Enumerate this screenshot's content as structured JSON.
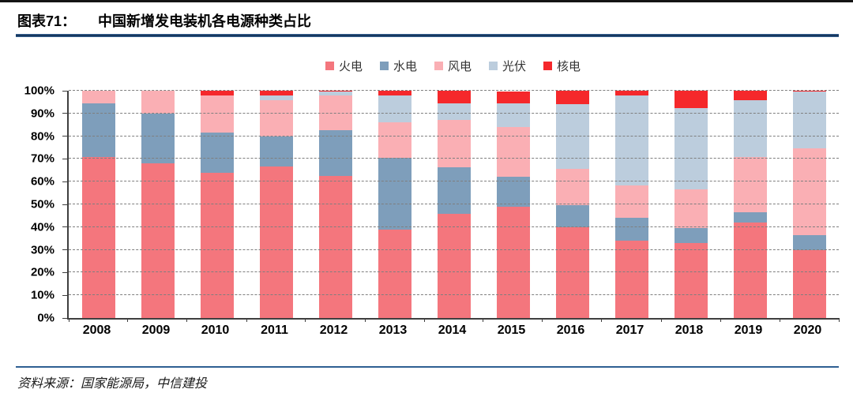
{
  "header": {
    "label": "图表71：",
    "title": "中国新增发电装机各电源种类占比"
  },
  "source": {
    "text": "资料来源：国家能源局，中信建投"
  },
  "colors": {
    "thermal": "#F4767D",
    "hydro": "#7E9EBB",
    "wind": "#FAAFB4",
    "solar": "#BCCDDD",
    "nuclear": "#F5282B",
    "title_rule": "#17375E",
    "source_rule": "#2E5F92",
    "axis": "#3F3F3F",
    "gridline": "#7F7F7F"
  },
  "chart_data": {
    "type": "bar",
    "stacked": true,
    "percent": true,
    "title": "中国新增发电装机各电源种类占比",
    "xlabel": "",
    "ylabel": "",
    "ylim": [
      0,
      100
    ],
    "yticks": [
      "0%",
      "10%",
      "20%",
      "30%",
      "40%",
      "50%",
      "60%",
      "70%",
      "80%",
      "90%",
      "100%"
    ],
    "grid": "horizontal-dashed",
    "legend_position": "top-center",
    "categories": [
      "2008",
      "2009",
      "2010",
      "2011",
      "2012",
      "2013",
      "2014",
      "2015",
      "2016",
      "2017",
      "2018",
      "2019",
      "2020"
    ],
    "series": [
      {
        "name": "火电",
        "color": "#F4767D",
        "values": [
          71,
          68,
          64,
          66.5,
          62.5,
          39,
          46,
          49,
          40,
          34,
          33,
          42,
          30
        ]
      },
      {
        "name": "水电",
        "color": "#7E9EBB",
        "values": [
          23.5,
          22,
          17.5,
          13.5,
          20,
          31.5,
          20.5,
          13,
          9.5,
          10,
          6.5,
          4.5,
          6.5
        ]
      },
      {
        "name": "风电",
        "color": "#FAAFB4",
        "values": [
          5.5,
          10,
          16.5,
          16,
          15.5,
          15.5,
          20.5,
          22,
          16,
          14.5,
          17,
          24.5,
          38
        ]
      },
      {
        "name": "光伏",
        "color": "#BCCDDD",
        "values": [
          0,
          0,
          0,
          2,
          1.5,
          12,
          7.5,
          10.5,
          28.5,
          39.5,
          36,
          25,
          25
        ]
      },
      {
        "name": "核电",
        "color": "#F5282B",
        "values": [
          0,
          0,
          2,
          2,
          0.5,
          2,
          5.5,
          5,
          6,
          2,
          7.5,
          4,
          0.5
        ]
      }
    ]
  }
}
